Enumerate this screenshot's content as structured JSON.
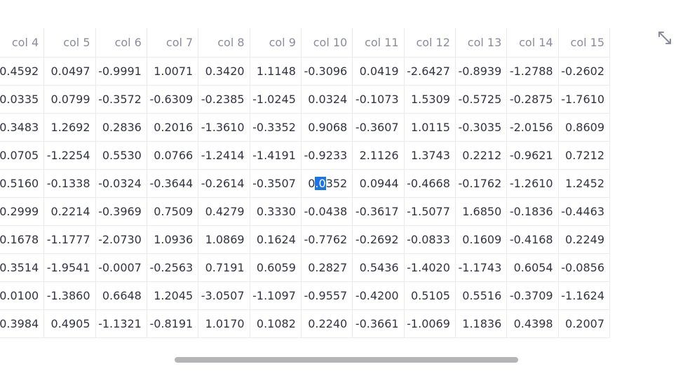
{
  "grid": {
    "columns": [
      "col 4",
      "col 5",
      "col 6",
      "col 7",
      "col 8",
      "col 9",
      "col 10",
      "col 11",
      "col 12",
      "col 13",
      "col 14",
      "col 15"
    ],
    "rows": [
      [
        "0.4592",
        "0.0497",
        "-0.9991",
        "1.0071",
        "0.3420",
        "1.1148",
        "-0.3096",
        "0.0419",
        "-2.6427",
        "-0.8939",
        "-1.2788",
        "-0.2602"
      ],
      [
        "0.0335",
        "0.0799",
        "-0.3572",
        "-0.6309",
        "-0.2385",
        "-1.0245",
        "0.0324",
        "-0.1073",
        "1.5309",
        "-0.5725",
        "-0.2875",
        "-1.7610"
      ],
      [
        "0.3483",
        "1.2692",
        "0.2836",
        "0.2016",
        "-1.3610",
        "-0.3352",
        "0.9068",
        "-0.3607",
        "1.0115",
        "-0.3035",
        "-2.0156",
        "0.8609"
      ],
      [
        "0.0705",
        "-1.2254",
        "0.5530",
        "0.0766",
        "-1.2414",
        "-1.4191",
        "-0.9233",
        "2.1126",
        "1.3743",
        "0.2212",
        "-0.9621",
        "0.7212"
      ],
      [
        "0.5160",
        "-0.1338",
        "-0.0324",
        "-0.3644",
        "-0.2614",
        "-0.3507",
        "0.0352",
        "0.0944",
        "-0.4668",
        "-0.1762",
        "-1.2610",
        "1.2452"
      ],
      [
        "0.2999",
        "0.2214",
        "-0.3969",
        "0.7509",
        "0.4279",
        "0.3330",
        "-0.0438",
        "-0.3617",
        "-1.5077",
        "1.6850",
        "-0.1836",
        "-0.4463"
      ],
      [
        "0.1678",
        "-1.1777",
        "-2.0730",
        "1.0936",
        "1.0869",
        "0.1624",
        "-0.7762",
        "-0.2692",
        "-0.0833",
        "0.1609",
        "-0.4168",
        "0.2249"
      ],
      [
        "0.3514",
        "-1.9541",
        "-0.0007",
        "-0.2563",
        "0.7191",
        "0.6059",
        "0.2827",
        "0.5436",
        "-1.4020",
        "-1.1743",
        "0.6054",
        "-0.0856"
      ],
      [
        "0.0100",
        "-1.3860",
        "0.6648",
        "1.2045",
        "-3.0507",
        "-1.1097",
        "-0.9557",
        "-0.4200",
        "0.5105",
        "0.5516",
        "-0.3709",
        "-1.1624"
      ],
      [
        "0.3984",
        "0.4905",
        "-1.1321",
        "-0.8191",
        "1.0170",
        "0.1082",
        "0.2240",
        "-0.3661",
        "-1.0069",
        "1.1836",
        "0.4398",
        "0.2007"
      ]
    ],
    "selection": {
      "row": 4,
      "col": 6,
      "selected_text": ".0",
      "before": "0",
      "after": "352"
    }
  },
  "icons": {
    "expand": "expand-arrows-icon"
  },
  "colors": {
    "selection": "#1a73e8",
    "header_text": "#8a8d99",
    "cell_text": "#31333f",
    "grid_line": "#ebebeb",
    "scrollbar": "#b5b5b8"
  }
}
